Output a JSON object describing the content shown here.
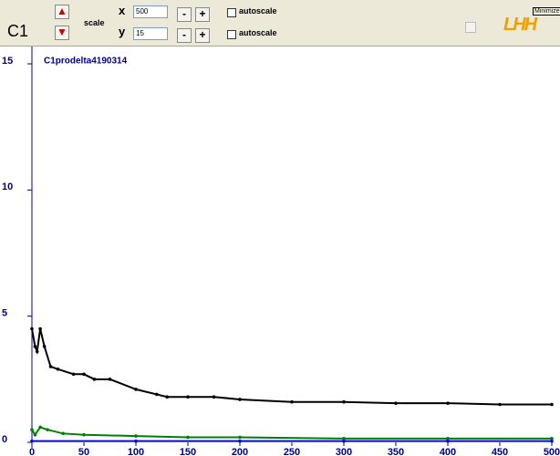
{
  "toolbar": {
    "channel": "C1",
    "scale_label": "scale",
    "x_label": "x",
    "x_value": "500",
    "y_label": "y",
    "y_value": "15",
    "minus": "-",
    "plus": "+",
    "autoscale_x": "autoscale",
    "autoscale_y": "autoscale",
    "tooltip": "Minimize",
    "logo": "LHH"
  },
  "chart_data": {
    "type": "line",
    "title": "C1prodelta4190314",
    "xlim": [
      0,
      500
    ],
    "ylim": [
      0,
      15
    ],
    "xticks": [
      0,
      50,
      100,
      150,
      200,
      250,
      300,
      350,
      400,
      450,
      500
    ],
    "yticks": [
      0,
      5,
      10,
      15
    ],
    "series": [
      {
        "color": "#000000",
        "x": [
          0,
          3,
          5,
          8,
          12,
          18,
          25,
          40,
          50,
          60,
          75,
          100,
          120,
          130,
          150,
          175,
          200,
          250,
          300,
          350,
          400,
          450,
          500
        ],
        "values": [
          4.5,
          3.8,
          3.6,
          4.5,
          3.8,
          3.0,
          2.9,
          2.7,
          2.7,
          2.5,
          2.5,
          2.1,
          1.9,
          1.8,
          1.8,
          1.8,
          1.7,
          1.6,
          1.6,
          1.55,
          1.55,
          1.5,
          1.5
        ]
      },
      {
        "color": "#008000",
        "x": [
          0,
          3,
          8,
          15,
          30,
          50,
          100,
          150,
          200,
          300,
          400,
          500
        ],
        "values": [
          0.5,
          0.3,
          0.6,
          0.5,
          0.35,
          0.3,
          0.25,
          0.2,
          0.2,
          0.15,
          0.15,
          0.15
        ]
      },
      {
        "color": "#0000ff",
        "x": [
          0,
          100,
          200,
          300,
          400,
          500
        ],
        "values": [
          0.05,
          0.05,
          0.05,
          0.05,
          0.05,
          0.05
        ]
      }
    ]
  }
}
